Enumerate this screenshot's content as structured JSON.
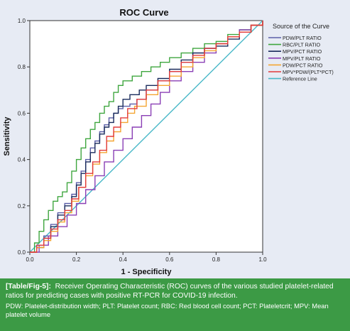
{
  "chart_data": {
    "type": "line",
    "title": "ROC Curve",
    "xlabel": "1 - Specificity",
    "ylabel": "Sensitivity",
    "xlim": [
      0,
      1
    ],
    "ylim": [
      0,
      1
    ],
    "xticks": [
      "0.0",
      "0.2",
      "0.4",
      "0.6",
      "0.8",
      "1.0"
    ],
    "yticks": [
      "0.0",
      "0.2",
      "0.4",
      "0.6",
      "0.8",
      "1.0"
    ],
    "grid": false,
    "legend_title": "Source of the Curve",
    "legend_position": "right",
    "series": [
      {
        "name": "PDW/PLT RATIO",
        "color": "#5b5fa8",
        "points": [
          [
            0,
            0
          ],
          [
            0.03,
            0.03
          ],
          [
            0.06,
            0.07
          ],
          [
            0.09,
            0.12
          ],
          [
            0.12,
            0.17
          ],
          [
            0.15,
            0.21
          ],
          [
            0.18,
            0.25
          ],
          [
            0.2,
            0.3
          ],
          [
            0.22,
            0.35
          ],
          [
            0.24,
            0.4
          ],
          [
            0.26,
            0.45
          ],
          [
            0.28,
            0.48
          ],
          [
            0.3,
            0.52
          ],
          [
            0.32,
            0.55
          ],
          [
            0.34,
            0.58
          ],
          [
            0.36,
            0.6
          ],
          [
            0.38,
            0.62
          ],
          [
            0.4,
            0.63
          ],
          [
            0.43,
            0.64
          ],
          [
            0.46,
            0.66
          ],
          [
            0.5,
            0.7
          ],
          [
            0.55,
            0.74
          ],
          [
            0.6,
            0.78
          ],
          [
            0.65,
            0.82
          ],
          [
            0.7,
            0.86
          ],
          [
            0.75,
            0.88
          ],
          [
            0.8,
            0.9
          ],
          [
            0.85,
            0.93
          ],
          [
            0.9,
            0.95
          ],
          [
            0.95,
            0.98
          ],
          [
            1,
            1
          ]
        ]
      },
      {
        "name": "RBC/PLT RATIO",
        "color": "#3fa63f",
        "points": [
          [
            0,
            0
          ],
          [
            0.02,
            0.04
          ],
          [
            0.04,
            0.09
          ],
          [
            0.06,
            0.14
          ],
          [
            0.08,
            0.18
          ],
          [
            0.1,
            0.22
          ],
          [
            0.12,
            0.24
          ],
          [
            0.14,
            0.26
          ],
          [
            0.16,
            0.3
          ],
          [
            0.18,
            0.35
          ],
          [
            0.2,
            0.4
          ],
          [
            0.22,
            0.45
          ],
          [
            0.24,
            0.49
          ],
          [
            0.26,
            0.53
          ],
          [
            0.28,
            0.56
          ],
          [
            0.3,
            0.6
          ],
          [
            0.32,
            0.63
          ],
          [
            0.34,
            0.65
          ],
          [
            0.36,
            0.69
          ],
          [
            0.38,
            0.72
          ],
          [
            0.4,
            0.74
          ],
          [
            0.44,
            0.76
          ],
          [
            0.48,
            0.78
          ],
          [
            0.52,
            0.8
          ],
          [
            0.56,
            0.82
          ],
          [
            0.6,
            0.84
          ],
          [
            0.65,
            0.86
          ],
          [
            0.7,
            0.88
          ],
          [
            0.75,
            0.9
          ],
          [
            0.8,
            0.91
          ],
          [
            0.85,
            0.94
          ],
          [
            0.9,
            0.96
          ],
          [
            0.95,
            0.98
          ],
          [
            1,
            1
          ]
        ]
      },
      {
        "name": "MPV/PCT RATIO",
        "color": "#1a2b5c",
        "points": [
          [
            0,
            0
          ],
          [
            0.03,
            0.02
          ],
          [
            0.06,
            0.06
          ],
          [
            0.09,
            0.11
          ],
          [
            0.12,
            0.16
          ],
          [
            0.15,
            0.2
          ],
          [
            0.18,
            0.24
          ],
          [
            0.2,
            0.29
          ],
          [
            0.22,
            0.34
          ],
          [
            0.24,
            0.39
          ],
          [
            0.26,
            0.43
          ],
          [
            0.28,
            0.47
          ],
          [
            0.3,
            0.51
          ],
          [
            0.32,
            0.54
          ],
          [
            0.34,
            0.56
          ],
          [
            0.36,
            0.6
          ],
          [
            0.38,
            0.63
          ],
          [
            0.4,
            0.66
          ],
          [
            0.43,
            0.68
          ],
          [
            0.47,
            0.7
          ],
          [
            0.5,
            0.72
          ],
          [
            0.55,
            0.75
          ],
          [
            0.6,
            0.79
          ],
          [
            0.65,
            0.83
          ],
          [
            0.7,
            0.86
          ],
          [
            0.75,
            0.88
          ],
          [
            0.8,
            0.89
          ],
          [
            0.85,
            0.92
          ],
          [
            0.9,
            0.95
          ],
          [
            0.95,
            0.98
          ],
          [
            1,
            1
          ]
        ]
      },
      {
        "name": "MPV/PLT RATIO",
        "color": "#8a3fb5",
        "points": [
          [
            0,
            0
          ],
          [
            0.04,
            0.03
          ],
          [
            0.08,
            0.07
          ],
          [
            0.12,
            0.11
          ],
          [
            0.16,
            0.16
          ],
          [
            0.2,
            0.21
          ],
          [
            0.24,
            0.27
          ],
          [
            0.28,
            0.33
          ],
          [
            0.32,
            0.39
          ],
          [
            0.36,
            0.44
          ],
          [
            0.4,
            0.49
          ],
          [
            0.44,
            0.54
          ],
          [
            0.48,
            0.59
          ],
          [
            0.52,
            0.64
          ],
          [
            0.56,
            0.69
          ],
          [
            0.6,
            0.74
          ],
          [
            0.65,
            0.78
          ],
          [
            0.7,
            0.82
          ],
          [
            0.75,
            0.86
          ],
          [
            0.8,
            0.9
          ],
          [
            0.85,
            0.93
          ],
          [
            0.9,
            0.96
          ],
          [
            0.95,
            0.98
          ],
          [
            1,
            1
          ]
        ]
      },
      {
        "name": "PDW/PCT RATIO",
        "color": "#f4a632",
        "points": [
          [
            0,
            0
          ],
          [
            0.03,
            0.02
          ],
          [
            0.06,
            0.05
          ],
          [
            0.09,
            0.09
          ],
          [
            0.12,
            0.13
          ],
          [
            0.15,
            0.17
          ],
          [
            0.18,
            0.22
          ],
          [
            0.21,
            0.28
          ],
          [
            0.24,
            0.33
          ],
          [
            0.27,
            0.38
          ],
          [
            0.3,
            0.43
          ],
          [
            0.33,
            0.48
          ],
          [
            0.36,
            0.52
          ],
          [
            0.39,
            0.56
          ],
          [
            0.42,
            0.6
          ],
          [
            0.45,
            0.63
          ],
          [
            0.5,
            0.68
          ],
          [
            0.55,
            0.72
          ],
          [
            0.6,
            0.76
          ],
          [
            0.65,
            0.8
          ],
          [
            0.7,
            0.84
          ],
          [
            0.75,
            0.87
          ],
          [
            0.8,
            0.9
          ],
          [
            0.85,
            0.93
          ],
          [
            0.9,
            0.95
          ],
          [
            0.95,
            0.98
          ],
          [
            1,
            1
          ]
        ]
      },
      {
        "name": "MPV*PDW/(PLT*PCT)",
        "color": "#e23b3b",
        "points": [
          [
            0,
            0
          ],
          [
            0.03,
            0.03
          ],
          [
            0.06,
            0.06
          ],
          [
            0.09,
            0.1
          ],
          [
            0.12,
            0.14
          ],
          [
            0.15,
            0.18
          ],
          [
            0.18,
            0.23
          ],
          [
            0.21,
            0.28
          ],
          [
            0.24,
            0.34
          ],
          [
            0.27,
            0.39
          ],
          [
            0.3,
            0.44
          ],
          [
            0.33,
            0.5
          ],
          [
            0.36,
            0.54
          ],
          [
            0.39,
            0.58
          ],
          [
            0.42,
            0.62
          ],
          [
            0.46,
            0.66
          ],
          [
            0.5,
            0.7
          ],
          [
            0.55,
            0.74
          ],
          [
            0.6,
            0.78
          ],
          [
            0.65,
            0.82
          ],
          [
            0.7,
            0.85
          ],
          [
            0.75,
            0.88
          ],
          [
            0.8,
            0.9
          ],
          [
            0.85,
            0.93
          ],
          [
            0.9,
            0.95
          ],
          [
            0.95,
            0.98
          ],
          [
            1,
            1
          ]
        ]
      },
      {
        "name": "Reference Line",
        "color": "#49b8c8",
        "points": [
          [
            0,
            0
          ],
          [
            1,
            1
          ]
        ]
      }
    ]
  },
  "caption": {
    "label": "[Table/Fig-5]:",
    "text": "Receiver Operating Characteristic (ROC) curves of the various studied platelet-related ratios for predicting cases with positive RT-PCR for COVID-19 infection.",
    "abbreviations": "PDW: Platelet-distribution width; PLT: Platelet count; RBC: Red blood cell count; PCT: Plateletcrit; MPV: Mean platelet volume"
  },
  "colors": {
    "panel_background": "#e7ebf4",
    "plot_background": "#ffffff",
    "caption_background": "#3c9a45",
    "caption_text": "#ffffff"
  }
}
